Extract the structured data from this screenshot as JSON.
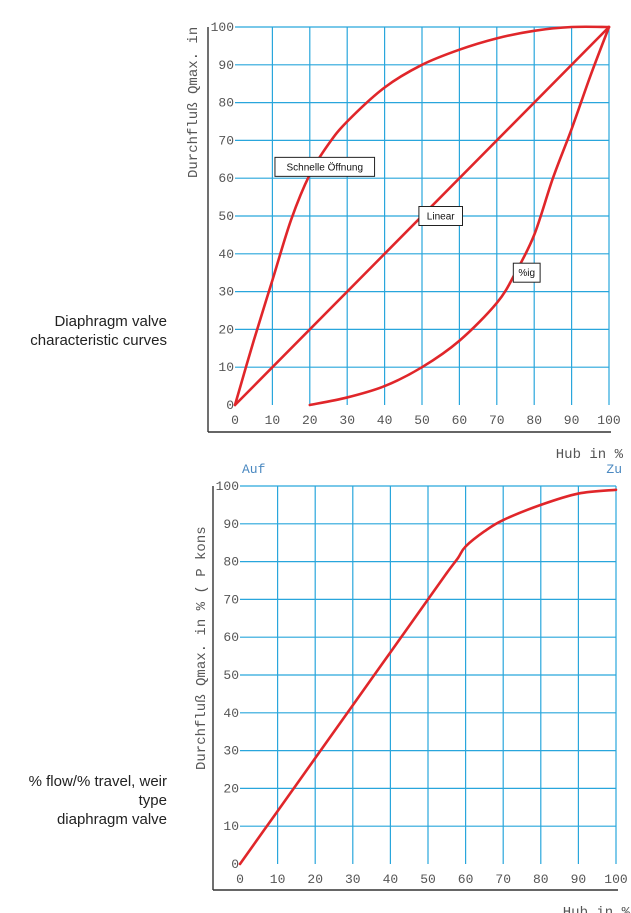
{
  "captions": {
    "top": [
      "Diaphragm valve",
      "characteristic curves"
    ],
    "bottom": [
      "% flow/% travel, weir",
      "type",
      "diaphragm valve"
    ]
  },
  "colors": {
    "grid": "#29a6dc",
    "curve": "#e0262a",
    "axis": "#333333",
    "accent_text": "#4a88c0"
  },
  "chart_data": [
    {
      "type": "line",
      "title": "",
      "xlabel": "Hub in %",
      "ylabel": "Durchfluß Qmax. in",
      "xlim": [
        0,
        100
      ],
      "ylim": [
        0,
        100
      ],
      "xticks": [
        "0",
        "10",
        "20",
        "30",
        "40",
        "50",
        "60",
        "70",
        "80",
        "90",
        "100"
      ],
      "yticks": [
        "0",
        "10",
        "20",
        "30",
        "40",
        "50",
        "60",
        "70",
        "80",
        "90",
        "100"
      ],
      "grid": true,
      "annotations": [
        {
          "text": "Schnelle Öffnung",
          "x": 24,
          "y": 63
        },
        {
          "text": "Linear",
          "x": 55,
          "y": 50
        },
        {
          "text": "%ig",
          "x": 78,
          "y": 35
        }
      ],
      "series": [
        {
          "name": "Schnelle Öffnung",
          "x": [
            0,
            5,
            10,
            15,
            20,
            25,
            30,
            40,
            50,
            60,
            70,
            80,
            90,
            100
          ],
          "y": [
            0,
            17,
            33,
            49,
            61,
            69,
            75,
            84,
            90,
            94,
            97,
            99,
            100,
            100
          ]
        },
        {
          "name": "Linear",
          "x": [
            0,
            100
          ],
          "y": [
            0,
            100
          ]
        },
        {
          "name": "%ig",
          "x": [
            20,
            30,
            40,
            50,
            60,
            70,
            75,
            80,
            85,
            90,
            95,
            100
          ],
          "y": [
            0,
            2,
            5,
            10,
            17,
            27,
            35,
            45,
            60,
            73,
            87,
            100
          ]
        }
      ]
    },
    {
      "type": "line",
      "title": "",
      "xlabel": "Hub in %",
      "ylabel": "Durchfluß Qmax. in % ( P kons",
      "xlim": [
        0,
        100
      ],
      "ylim": [
        0,
        100
      ],
      "xticks": [
        "0",
        "10",
        "20",
        "30",
        "40",
        "50",
        "60",
        "70",
        "80",
        "90",
        "100"
      ],
      "yticks": [
        "0",
        "10",
        "20",
        "30",
        "40",
        "50",
        "60",
        "70",
        "80",
        "90",
        "100"
      ],
      "grid": true,
      "top_labels": {
        "left": "Auf",
        "right": "Zu"
      },
      "series": [
        {
          "name": "",
          "x": [
            0,
            10,
            20,
            30,
            40,
            50,
            55,
            58,
            60,
            65,
            70,
            80,
            90,
            100
          ],
          "y": [
            0,
            14,
            28,
            42,
            56,
            70,
            77,
            81,
            84,
            88,
            91,
            95,
            98,
            99
          ]
        }
      ]
    }
  ]
}
